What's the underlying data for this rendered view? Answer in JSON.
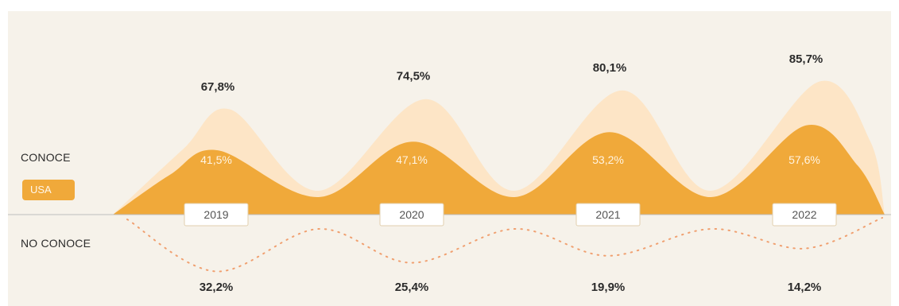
{
  "labels": {
    "conoce": "CONOCE",
    "no_conoce": "NO CONOCE",
    "legend_usa": "USA"
  },
  "colors": {
    "background": "#f6f2ea",
    "total_area": "#fde5c6",
    "usa_area": "#f0a93a",
    "no_conoce_dots": "#f0a070",
    "baseline": "#bdbdbd"
  },
  "chart_data": {
    "type": "area",
    "categories": [
      "2019",
      "2020",
      "2021",
      "2022"
    ],
    "series": [
      {
        "name": "",
        "role": "conoce-total",
        "values": [
          67.8,
          74.5,
          80.1,
          85.7
        ],
        "labels": [
          "67,8%",
          "74,5%",
          "80,1%",
          "85,7%"
        ]
      },
      {
        "name": "USA",
        "role": "conoce-usa",
        "values": [
          41.5,
          47.1,
          53.2,
          57.6
        ],
        "labels": [
          "41,5%",
          "47,1%",
          "53,2%",
          "57,6%"
        ]
      },
      {
        "name": "",
        "role": "no-conoce",
        "values": [
          32.2,
          25.4,
          19.9,
          14.2
        ],
        "labels": [
          "32,2%",
          "25,4%",
          "19,9%",
          "14,2%"
        ]
      }
    ],
    "title": "",
    "xlabel": "",
    "ylabel": "",
    "grid": false
  }
}
